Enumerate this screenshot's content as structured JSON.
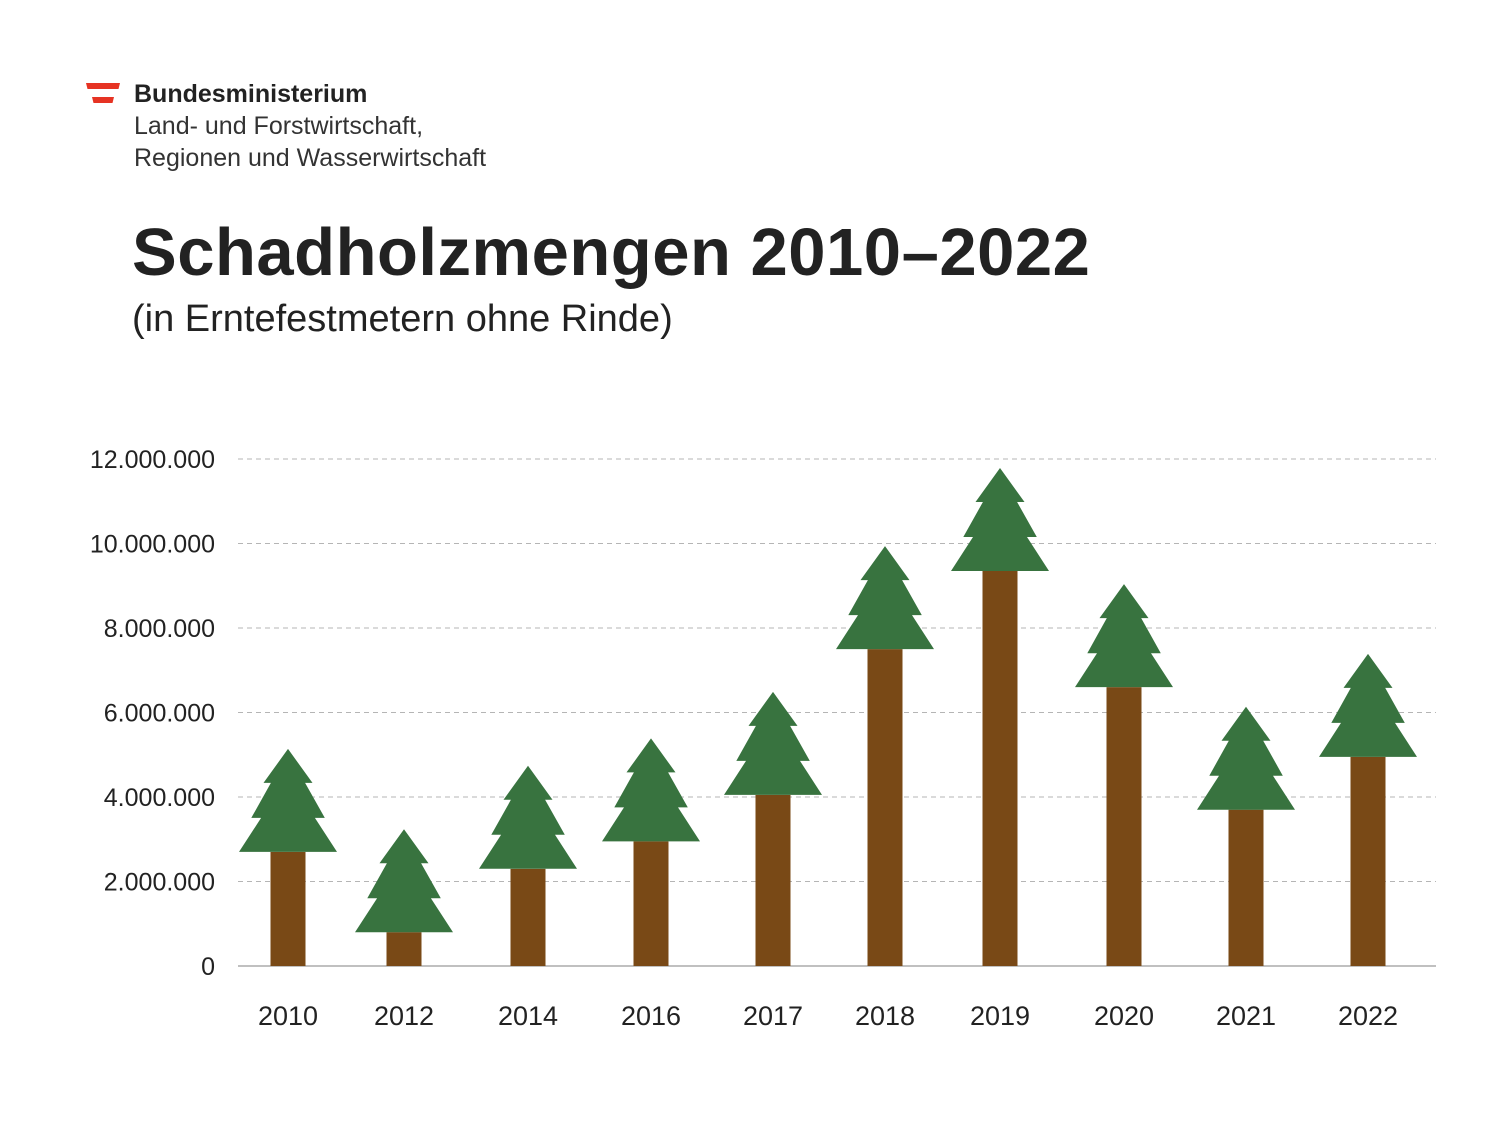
{
  "header": {
    "ministry_line1": "Bundesministerium",
    "ministry_line2": "Land- und Forstwirtschaft,",
    "ministry_line3": "Regionen und Wasserwirtschaft"
  },
  "colors": {
    "flag_red": "#e63323",
    "tree_green": "#38733f",
    "trunk_brown": "#794916",
    "grid": "#b5b5b5",
    "text": "#222222"
  },
  "chart_data": {
    "type": "bar",
    "title": "Schadholzmengen 2010–2022",
    "subtitle": "(in Erntefestmetern ohne Rinde)",
    "categories": [
      "2010",
      "2012",
      "2014",
      "2016",
      "2017",
      "2018",
      "2019",
      "2020",
      "2021",
      "2022"
    ],
    "values": [
      2700000,
      800000,
      2300000,
      2950000,
      4050000,
      7500000,
      9350000,
      6600000,
      3700000,
      4950000
    ],
    "ylim": [
      0,
      12000000
    ],
    "yticks": [
      0,
      2000000,
      4000000,
      6000000,
      8000000,
      10000000,
      12000000
    ],
    "ytick_labels": [
      "0",
      "2.000.000",
      "4.000.000",
      "6.000.000",
      "8.000.000",
      "10.000.000",
      "12.000.000"
    ],
    "grid": true,
    "xlabel": "",
    "ylabel": "",
    "mark_style": "tree-shaped bars: brown trunk with green fir crown on top"
  }
}
